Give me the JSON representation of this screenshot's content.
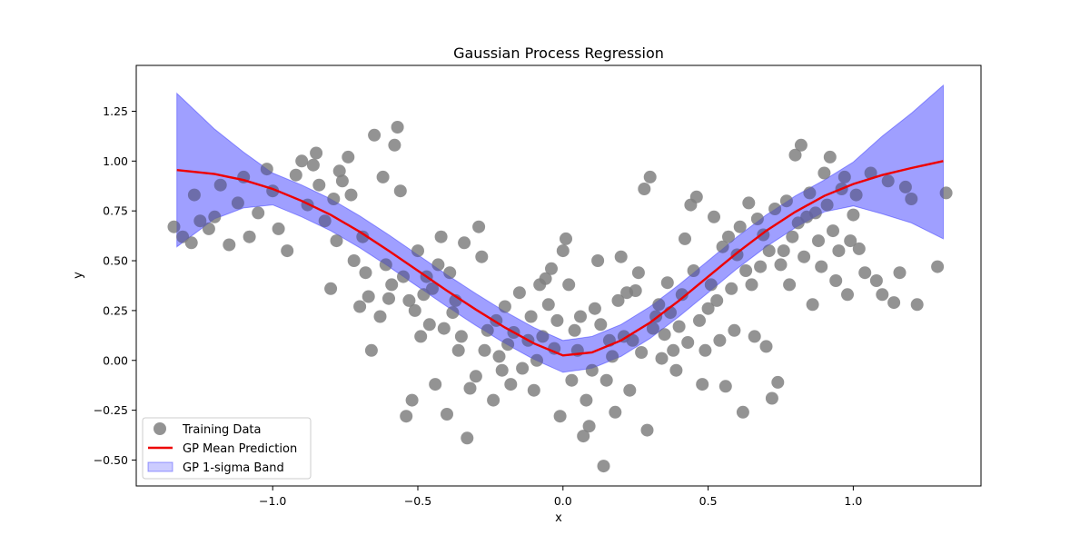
{
  "chart_data": {
    "type": "scatter",
    "title": "Gaussian Process Regression",
    "xlabel": "x",
    "ylabel": "y",
    "xlim": [
      -1.47,
      1.44
    ],
    "ylim": [
      -0.63,
      1.48
    ],
    "xticks": [
      -1.0,
      -0.5,
      0.0,
      0.5,
      1.0
    ],
    "xtick_labels": [
      "−1.0",
      "−0.5",
      "0.0",
      "0.5",
      "1.0"
    ],
    "yticks": [
      -0.5,
      -0.25,
      0.0,
      0.25,
      0.5,
      0.75,
      1.0,
      1.25
    ],
    "ytick_labels": [
      "−0.50",
      "−0.25",
      "0.00",
      "0.25",
      "0.50",
      "0.75",
      "1.00",
      "1.25"
    ],
    "legend_position": "lower-left",
    "colors": {
      "scatter": "#808080",
      "mean_line": "#ee0000",
      "band": "#0000ff"
    },
    "series": [
      {
        "name": "Training Data",
        "kind": "scatter",
        "points": [
          [
            -1.34,
            0.67
          ],
          [
            -1.31,
            0.62
          ],
          [
            -1.28,
            0.59
          ],
          [
            -1.27,
            0.83
          ],
          [
            -1.25,
            0.7
          ],
          [
            -1.22,
            0.66
          ],
          [
            -1.2,
            0.72
          ],
          [
            -1.18,
            0.88
          ],
          [
            -1.15,
            0.58
          ],
          [
            -1.12,
            0.79
          ],
          [
            -1.1,
            0.92
          ],
          [
            -1.08,
            0.62
          ],
          [
            -1.05,
            0.74
          ],
          [
            -1.02,
            0.96
          ],
          [
            -1.0,
            0.85
          ],
          [
            -0.98,
            0.66
          ],
          [
            -0.95,
            0.55
          ],
          [
            -0.92,
            0.93
          ],
          [
            -0.9,
            1.0
          ],
          [
            -0.88,
            0.78
          ],
          [
            -0.85,
            1.04
          ],
          [
            -0.82,
            0.7
          ],
          [
            -0.8,
            0.36
          ],
          [
            -0.78,
            0.6
          ],
          [
            -0.76,
            0.9
          ],
          [
            -0.74,
            1.02
          ],
          [
            -0.72,
            0.5
          ],
          [
            -0.7,
            0.27
          ],
          [
            -0.68,
            0.44
          ],
          [
            -0.66,
            0.05
          ],
          [
            -0.65,
            1.13
          ],
          [
            -0.62,
            0.92
          ],
          [
            -0.6,
            0.31
          ],
          [
            -0.58,
            1.08
          ],
          [
            -0.57,
            1.17
          ],
          [
            -0.56,
            0.85
          ],
          [
            -0.55,
            0.42
          ],
          [
            -0.54,
            -0.28
          ],
          [
            -0.52,
            -0.2
          ],
          [
            -0.5,
            0.55
          ],
          [
            -0.48,
            0.33
          ],
          [
            -0.46,
            0.18
          ],
          [
            -0.44,
            -0.12
          ],
          [
            -0.42,
            0.62
          ],
          [
            -0.4,
            -0.27
          ],
          [
            -0.38,
            0.24
          ],
          [
            -0.36,
            0.05
          ],
          [
            -0.34,
            0.59
          ],
          [
            -0.33,
            -0.39
          ],
          [
            -0.3,
            -0.08
          ],
          [
            -0.29,
            0.67
          ],
          [
            -0.28,
            0.52
          ],
          [
            -0.26,
            0.15
          ],
          [
            -0.24,
            -0.2
          ],
          [
            -0.22,
            0.02
          ],
          [
            -0.2,
            0.27
          ],
          [
            -0.18,
            -0.12
          ],
          [
            -0.15,
            0.34
          ],
          [
            -0.12,
            0.1
          ],
          [
            -0.1,
            -0.15
          ],
          [
            -0.08,
            0.38
          ],
          [
            -0.06,
            0.41
          ],
          [
            -0.04,
            0.46
          ],
          [
            -0.02,
            0.2
          ],
          [
            -0.01,
            -0.28
          ],
          [
            0.0,
            0.55
          ],
          [
            0.01,
            0.61
          ],
          [
            0.02,
            0.38
          ],
          [
            0.03,
            -0.1
          ],
          [
            0.05,
            0.05
          ],
          [
            0.07,
            -0.38
          ],
          [
            0.09,
            -0.33
          ],
          [
            0.11,
            0.26
          ],
          [
            0.12,
            0.5
          ],
          [
            0.14,
            -0.53
          ],
          [
            0.16,
            0.1
          ],
          [
            0.18,
            -0.26
          ],
          [
            0.2,
            0.52
          ],
          [
            0.22,
            0.34
          ],
          [
            0.24,
            0.1
          ],
          [
            0.26,
            0.44
          ],
          [
            0.28,
            0.86
          ],
          [
            0.3,
            0.92
          ],
          [
            0.29,
            -0.35
          ],
          [
            0.32,
            0.22
          ],
          [
            0.34,
            0.01
          ],
          [
            0.36,
            0.39
          ],
          [
            0.38,
            0.05
          ],
          [
            0.4,
            0.17
          ],
          [
            0.42,
            0.61
          ],
          [
            0.44,
            0.78
          ],
          [
            0.46,
            0.82
          ],
          [
            0.48,
            -0.12
          ],
          [
            0.5,
            0.26
          ],
          [
            0.52,
            0.72
          ],
          [
            0.54,
            0.1
          ],
          [
            0.56,
            -0.13
          ],
          [
            0.58,
            0.36
          ],
          [
            0.6,
            0.53
          ],
          [
            0.62,
            -0.26
          ],
          [
            0.64,
            0.79
          ],
          [
            0.66,
            0.12
          ],
          [
            0.68,
            0.47
          ],
          [
            0.7,
            0.07
          ],
          [
            0.72,
            -0.19
          ],
          [
            0.74,
            -0.11
          ],
          [
            0.76,
            0.55
          ],
          [
            0.78,
            0.38
          ],
          [
            0.8,
            1.03
          ],
          [
            0.82,
            1.08
          ],
          [
            0.84,
            0.72
          ],
          [
            0.86,
            0.28
          ],
          [
            0.88,
            0.6
          ],
          [
            0.9,
            0.94
          ],
          [
            0.92,
            1.02
          ],
          [
            0.94,
            0.4
          ],
          [
            0.96,
            0.86
          ],
          [
            0.98,
            0.33
          ],
          [
            1.0,
            0.73
          ],
          [
            1.02,
            0.56
          ],
          [
            1.04,
            0.44
          ],
          [
            1.06,
            0.94
          ],
          [
            1.08,
            0.4
          ],
          [
            1.1,
            0.33
          ],
          [
            1.12,
            0.9
          ],
          [
            1.14,
            0.29
          ],
          [
            1.16,
            0.44
          ],
          [
            1.18,
            0.87
          ],
          [
            1.2,
            0.81
          ],
          [
            1.22,
            0.28
          ],
          [
            1.29,
            0.47
          ],
          [
            1.32,
            0.84
          ],
          [
            -0.86,
            0.98
          ],
          [
            -0.84,
            0.88
          ],
          [
            -0.79,
            0.81
          ],
          [
            -0.77,
            0.95
          ],
          [
            -0.73,
            0.83
          ],
          [
            -0.69,
            0.62
          ],
          [
            -0.67,
            0.32
          ],
          [
            -0.63,
            0.22
          ],
          [
            -0.61,
            0.48
          ],
          [
            -0.59,
            0.38
          ],
          [
            -0.53,
            0.3
          ],
          [
            -0.51,
            0.25
          ],
          [
            -0.49,
            0.12
          ],
          [
            -0.47,
            0.42
          ],
          [
            -0.45,
            0.36
          ],
          [
            -0.43,
            0.48
          ],
          [
            -0.41,
            0.16
          ],
          [
            -0.39,
            0.44
          ],
          [
            -0.37,
            0.3
          ],
          [
            -0.35,
            0.12
          ],
          [
            -0.32,
            -0.14
          ],
          [
            -0.27,
            0.05
          ],
          [
            -0.23,
            0.2
          ],
          [
            -0.21,
            -0.05
          ],
          [
            -0.19,
            0.08
          ],
          [
            -0.17,
            0.14
          ],
          [
            -0.14,
            -0.04
          ],
          [
            -0.11,
            0.22
          ],
          [
            -0.09,
            0.0
          ],
          [
            -0.07,
            0.12
          ],
          [
            -0.05,
            0.28
          ],
          [
            -0.03,
            0.06
          ],
          [
            0.04,
            0.15
          ],
          [
            0.06,
            0.22
          ],
          [
            0.08,
            -0.2
          ],
          [
            0.1,
            -0.05
          ],
          [
            0.13,
            0.18
          ],
          [
            0.15,
            -0.1
          ],
          [
            0.17,
            0.02
          ],
          [
            0.19,
            0.3
          ],
          [
            0.21,
            0.12
          ],
          [
            0.23,
            -0.15
          ],
          [
            0.25,
            0.35
          ],
          [
            0.27,
            0.04
          ],
          [
            0.31,
            0.16
          ],
          [
            0.33,
            0.28
          ],
          [
            0.35,
            0.13
          ],
          [
            0.37,
            0.24
          ],
          [
            0.39,
            -0.05
          ],
          [
            0.41,
            0.33
          ],
          [
            0.43,
            0.09
          ],
          [
            0.45,
            0.45
          ],
          [
            0.47,
            0.2
          ],
          [
            0.49,
            0.05
          ],
          [
            0.51,
            0.38
          ],
          [
            0.53,
            0.3
          ],
          [
            0.55,
            0.57
          ],
          [
            0.57,
            0.62
          ],
          [
            0.59,
            0.15
          ],
          [
            0.61,
            0.67
          ],
          [
            0.63,
            0.45
          ],
          [
            0.65,
            0.38
          ],
          [
            0.67,
            0.71
          ],
          [
            0.69,
            0.63
          ],
          [
            0.71,
            0.55
          ],
          [
            0.73,
            0.76
          ],
          [
            0.75,
            0.48
          ],
          [
            0.77,
            0.8
          ],
          [
            0.79,
            0.62
          ],
          [
            0.81,
            0.69
          ],
          [
            0.83,
            0.52
          ],
          [
            0.85,
            0.84
          ],
          [
            0.87,
            0.74
          ],
          [
            0.89,
            0.47
          ],
          [
            0.91,
            0.78
          ],
          [
            0.93,
            0.65
          ],
          [
            0.95,
            0.55
          ],
          [
            0.97,
            0.92
          ],
          [
            0.99,
            0.6
          ],
          [
            1.01,
            0.83
          ]
        ]
      },
      {
        "name": "GP Mean Prediction",
        "kind": "line"
      },
      {
        "name": "GP 1-sigma Band",
        "kind": "band"
      }
    ],
    "curve": {
      "x": [
        -1.33,
        -1.2,
        -1.1,
        -1.0,
        -0.9,
        -0.8,
        -0.7,
        -0.6,
        -0.5,
        -0.4,
        -0.3,
        -0.2,
        -0.1,
        0.0,
        0.1,
        0.2,
        0.3,
        0.4,
        0.5,
        0.6,
        0.7,
        0.8,
        0.9,
        1.0,
        1.1,
        1.2,
        1.31
      ],
      "mean": [
        0.955,
        0.935,
        0.905,
        0.86,
        0.8,
        0.73,
        0.645,
        0.55,
        0.45,
        0.35,
        0.255,
        0.165,
        0.085,
        0.025,
        0.04,
        0.1,
        0.19,
        0.3,
        0.42,
        0.54,
        0.65,
        0.745,
        0.825,
        0.885,
        0.93,
        0.965,
        1.0
      ],
      "lower": [
        0.57,
        0.71,
        0.765,
        0.78,
        0.72,
        0.65,
        0.565,
        0.47,
        0.37,
        0.27,
        0.175,
        0.085,
        0.005,
        -0.06,
        -0.04,
        0.02,
        0.11,
        0.22,
        0.34,
        0.46,
        0.57,
        0.665,
        0.745,
        0.775,
        0.735,
        0.69,
        0.61
      ],
      "upper": [
        1.34,
        1.16,
        1.045,
        0.94,
        0.88,
        0.81,
        0.725,
        0.63,
        0.53,
        0.43,
        0.335,
        0.245,
        0.165,
        0.1,
        0.12,
        0.18,
        0.27,
        0.38,
        0.5,
        0.62,
        0.73,
        0.825,
        0.905,
        0.995,
        1.125,
        1.24,
        1.38
      ]
    }
  }
}
